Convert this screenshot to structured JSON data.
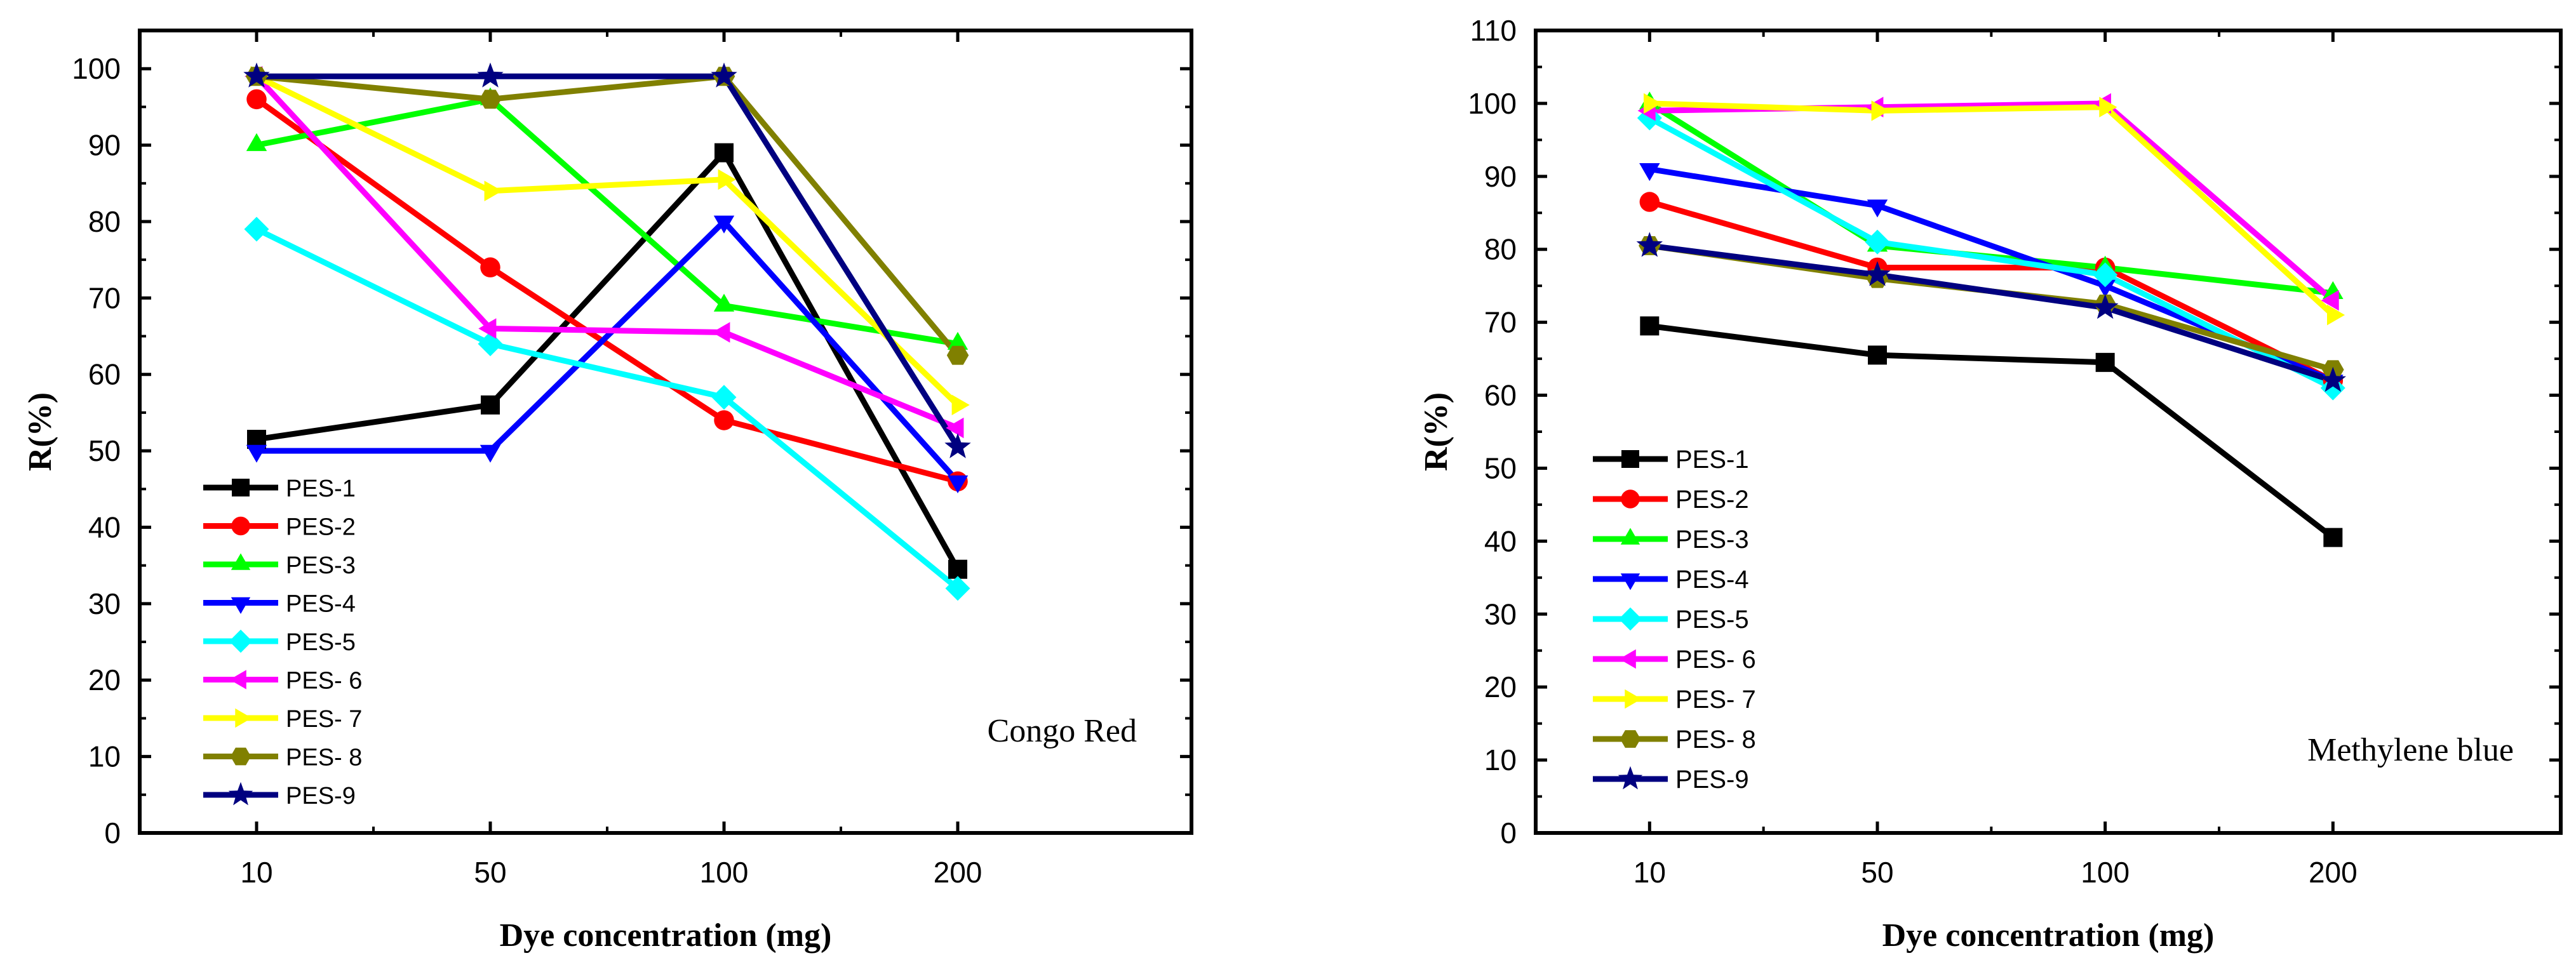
{
  "chart_data": [
    {
      "type": "line",
      "title": "",
      "annotation": "Congo Red",
      "xlabel": "Dye concentration (mg)",
      "ylabel": "R(%)",
      "categories": [
        "10",
        "50",
        "100",
        "200"
      ],
      "ylim": [
        0,
        105
      ],
      "yticks": [
        "0",
        "10",
        "20",
        "30",
        "40",
        "50",
        "60",
        "70",
        "80",
        "90",
        "100"
      ],
      "legend_position": "bottom-left",
      "series": [
        {
          "name": "PES-1",
          "color": "#000000",
          "marker": "square",
          "values": [
            51.5,
            56,
            89,
            34.5
          ]
        },
        {
          "name": "PES-2",
          "color": "#ff0000",
          "marker": "circle",
          "values": [
            96,
            74,
            54,
            46
          ]
        },
        {
          "name": "PES-3",
          "color": "#00ff00",
          "marker": "triangle-up",
          "values": [
            90,
            96,
            69,
            64
          ]
        },
        {
          "name": "PES-4",
          "color": "#0000ff",
          "marker": "triangle-down",
          "values": [
            50,
            50,
            80,
            46
          ]
        },
        {
          "name": "PES-5",
          "color": "#00ffff",
          "marker": "diamond",
          "values": [
            79,
            64,
            57,
            32
          ]
        },
        {
          "name": "PES- 6",
          "color": "#ff00ff",
          "marker": "triangle-left",
          "values": [
            99,
            66,
            65.5,
            53
          ]
        },
        {
          "name": "PES- 7",
          "color": "#ffff00",
          "marker": "triangle-right",
          "values": [
            99,
            84,
            85.5,
            56
          ]
        },
        {
          "name": "PES- 8",
          "color": "#808000",
          "marker": "hexagon",
          "values": [
            99,
            96,
            99,
            62.5
          ]
        },
        {
          "name": "PES-9",
          "color": "#000080",
          "marker": "star",
          "values": [
            99,
            99,
            99,
            50.5
          ]
        }
      ]
    },
    {
      "type": "line",
      "title": "",
      "annotation": "Methylene blue",
      "xlabel": "Dye concentration (mg)",
      "ylabel": "R(%)",
      "categories": [
        "10",
        "50",
        "100",
        "200"
      ],
      "ylim": [
        0,
        110
      ],
      "yticks": [
        "0",
        "10",
        "20",
        "30",
        "40",
        "50",
        "60",
        "70",
        "80",
        "90",
        "100",
        "110"
      ],
      "legend_position": "bottom-left",
      "series": [
        {
          "name": "PES-1",
          "color": "#000000",
          "marker": "square",
          "values": [
            69.5,
            65.5,
            64.5,
            40.5
          ]
        },
        {
          "name": "PES-2",
          "color": "#ff0000",
          "marker": "circle",
          "values": [
            86.5,
            77.5,
            77.5,
            62
          ]
        },
        {
          "name": "PES-3",
          "color": "#00ff00",
          "marker": "triangle-up",
          "values": [
            100,
            80.5,
            77.5,
            74
          ]
        },
        {
          "name": "PES-4",
          "color": "#0000ff",
          "marker": "triangle-down",
          "values": [
            91,
            86,
            75,
            62
          ]
        },
        {
          "name": "PES-5",
          "color": "#00ffff",
          "marker": "diamond",
          "values": [
            98,
            81,
            76.5,
            61
          ]
        },
        {
          "name": "PES- 6",
          "color": "#ff00ff",
          "marker": "triangle-left",
          "values": [
            99,
            99.5,
            100,
            73
          ]
        },
        {
          "name": "PES- 7",
          "color": "#ffff00",
          "marker": "triangle-right",
          "values": [
            100,
            99,
            99.5,
            71
          ]
        },
        {
          "name": "PES- 8",
          "color": "#808000",
          "marker": "hexagon",
          "values": [
            80.5,
            76,
            72.5,
            63.5
          ]
        },
        {
          "name": "PES-9",
          "color": "#000080",
          "marker": "star",
          "values": [
            80.5,
            76.5,
            72,
            62
          ]
        }
      ]
    }
  ]
}
